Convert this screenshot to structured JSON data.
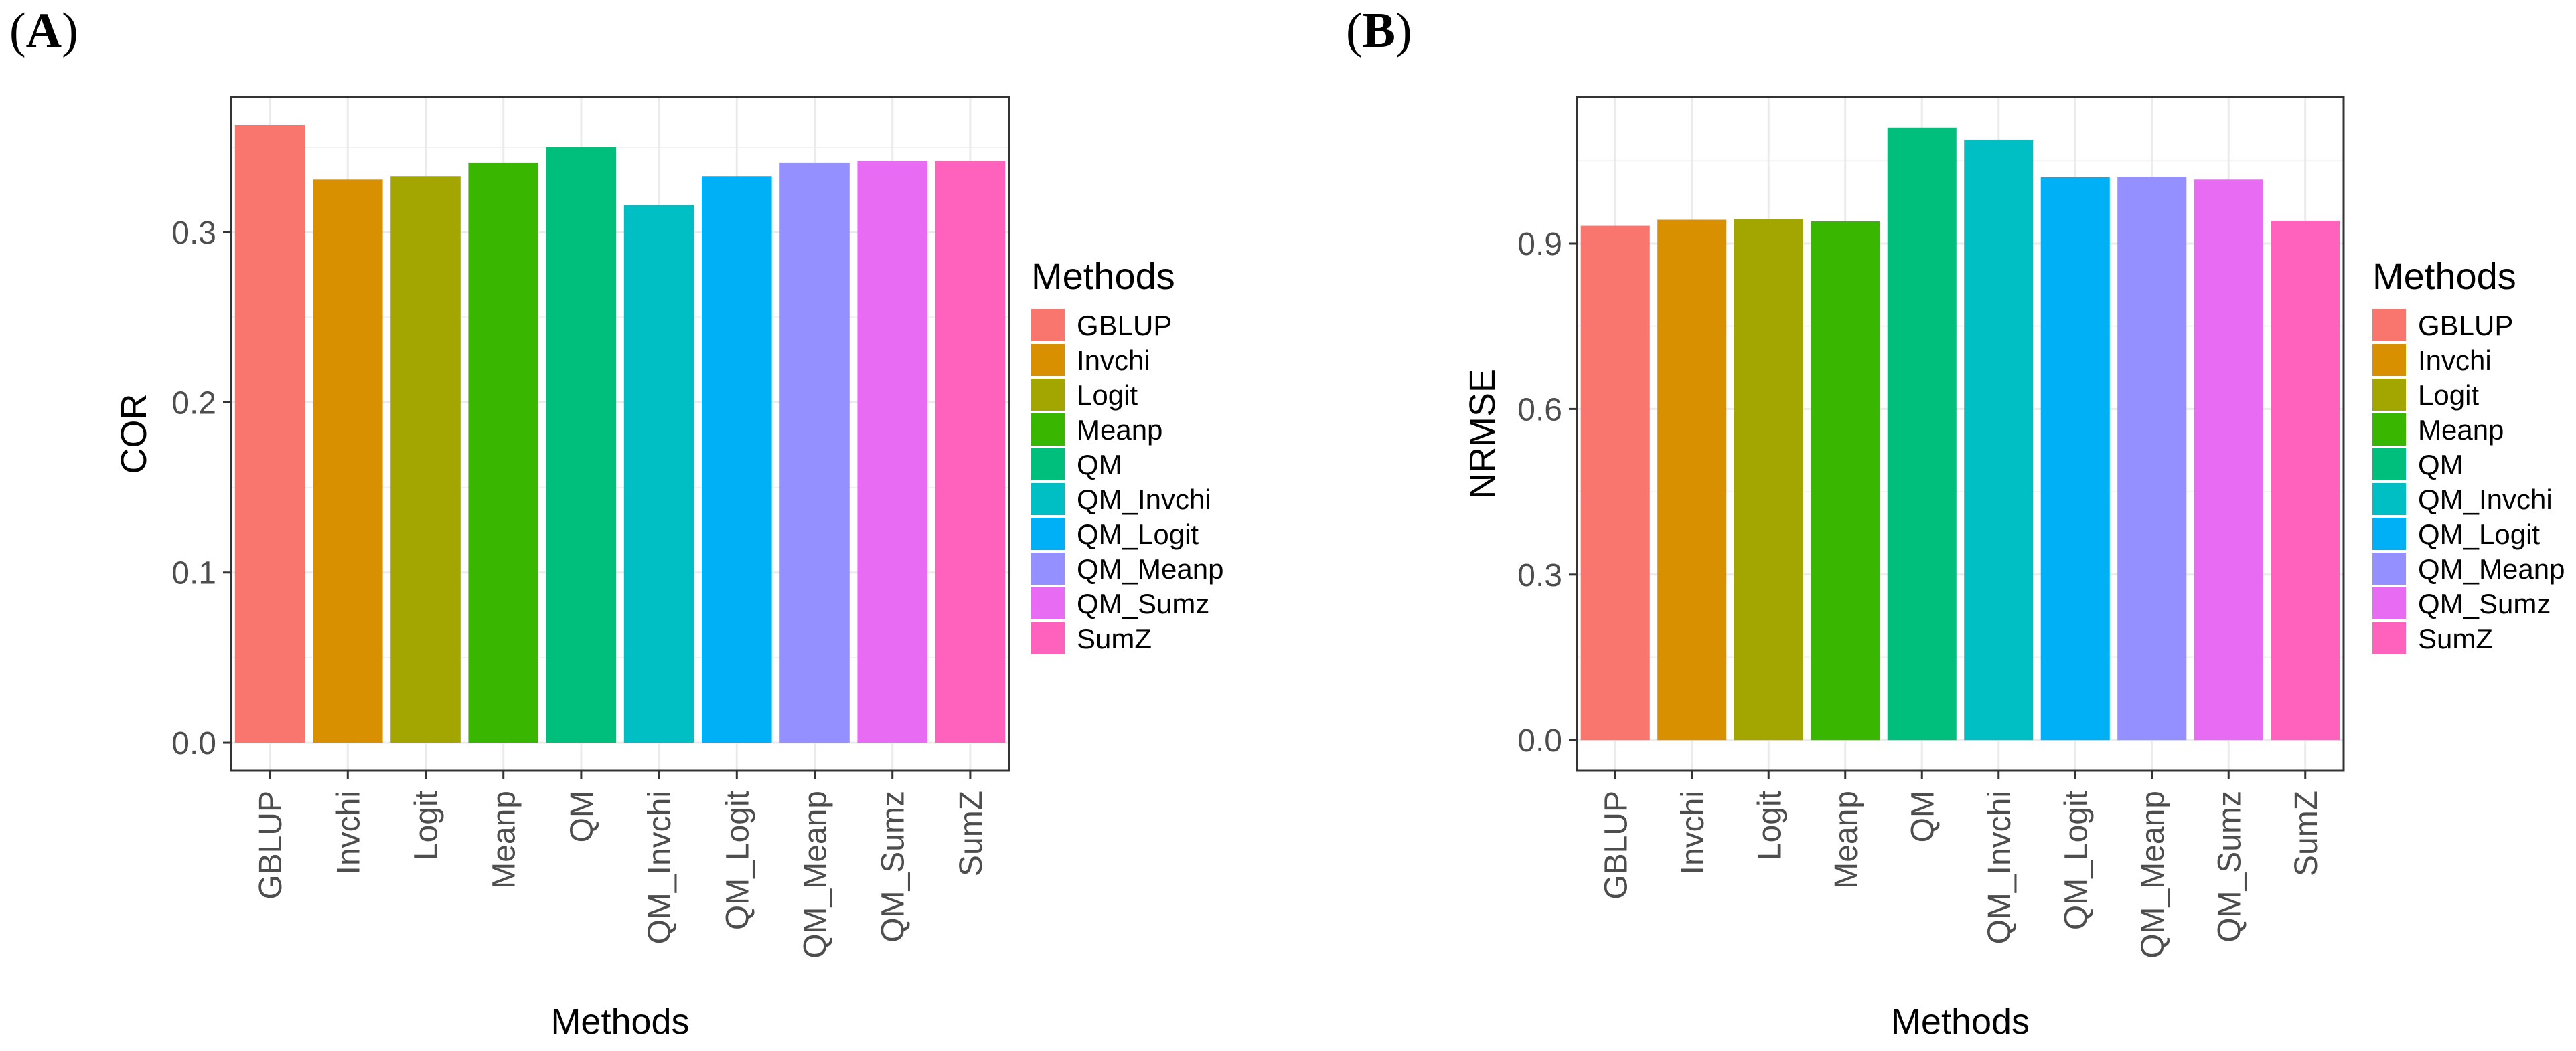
{
  "chart_data": [
    {
      "type": "bar",
      "panel_label": "A",
      "categories": [
        "GBLUP",
        "Invchi",
        "Logit",
        "Meanp",
        "QM",
        "QM_Invchi",
        "QM_Logit",
        "QM_Meanp",
        "QM_Sumz",
        "SumZ"
      ],
      "values": [
        0.363,
        0.331,
        0.333,
        0.341,
        0.35,
        0.316,
        0.333,
        0.341,
        0.342,
        0.342
      ],
      "colors": [
        "#F8766D",
        "#D89000",
        "#A3A500",
        "#39B600",
        "#00BF7D",
        "#00BFC4",
        "#00B0F6",
        "#9590FF",
        "#E76BF3",
        "#FF62BC"
      ],
      "xlabel": "Methods",
      "ylabel": "COR",
      "ylim": [
        -0.0165,
        0.3795
      ],
      "yticks": [
        0.0,
        0.1,
        0.2,
        0.3
      ],
      "ytick_labels": [
        "0.0",
        "0.1",
        "0.2",
        "0.3"
      ],
      "legend_title": "Methods",
      "legend_position": "right",
      "grid": true
    },
    {
      "type": "bar",
      "panel_label": "B",
      "categories": [
        "GBLUP",
        "Invchi",
        "Logit",
        "Meanp",
        "QM",
        "QM_Invchi",
        "QM_Logit",
        "QM_Meanp",
        "QM_Sumz",
        "SumZ"
      ],
      "values": [
        0.932,
        0.943,
        0.944,
        0.94,
        1.11,
        1.088,
        1.02,
        1.021,
        1.016,
        0.941
      ],
      "colors": [
        "#F8766D",
        "#D89000",
        "#A3A500",
        "#39B600",
        "#00BF7D",
        "#00BFC4",
        "#00B0F6",
        "#9590FF",
        "#E76BF3",
        "#FF62BC"
      ],
      "xlabel": "Methods",
      "ylabel": "NRMSE",
      "ylim": [
        -0.0555,
        1.1655
      ],
      "yticks": [
        0.0,
        0.3,
        0.6,
        0.9
      ],
      "ytick_labels": [
        "0.0",
        "0.3",
        "0.6",
        "0.9"
      ],
      "legend_title": "Methods",
      "legend_position": "right",
      "grid": true
    }
  ]
}
